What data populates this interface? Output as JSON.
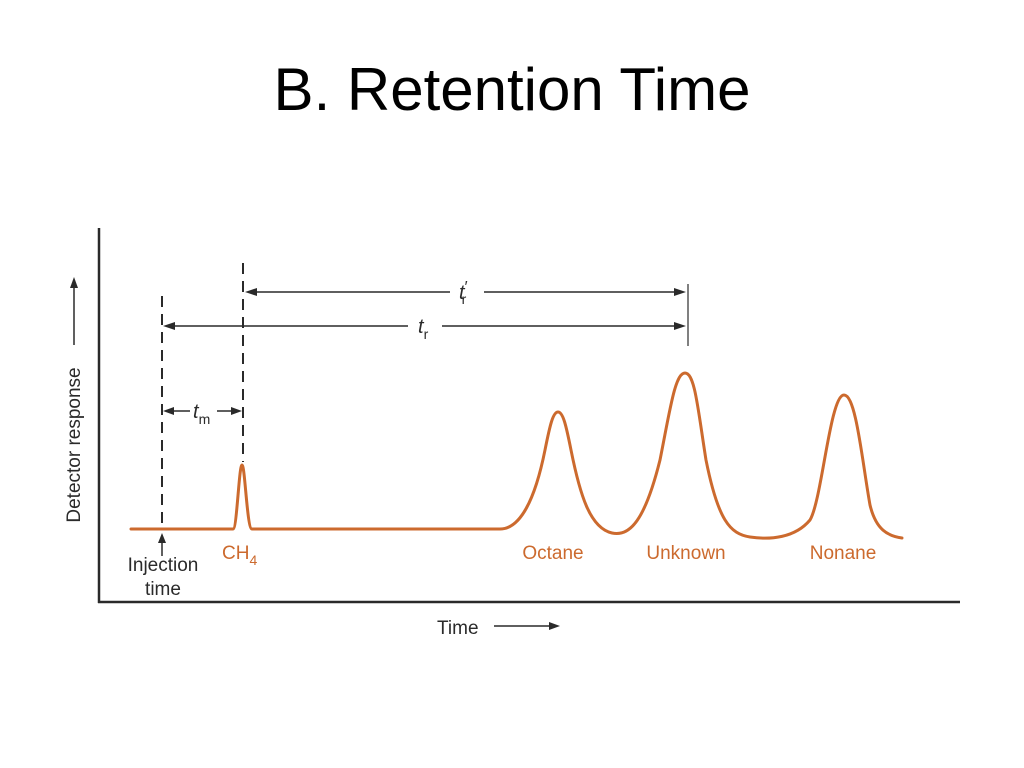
{
  "title": "B. Retention Time",
  "colors": {
    "trace": "#cc6a2e",
    "ink": "#2a2a2a",
    "peak_label": "#cc6a2e"
  },
  "axes": {
    "y_label": "Detector response",
    "x_label": "Time"
  },
  "markers": {
    "injection": {
      "line1": "Injection",
      "line2": "time"
    },
    "t_m": {
      "symbol": "t",
      "sub": "m"
    },
    "t_r": {
      "symbol": "t",
      "sub": "r"
    },
    "t_r_prime": {
      "symbol": "t",
      "sup": "′",
      "sub": "r"
    }
  },
  "peaks": [
    {
      "label_main": "CH",
      "label_sub": "4"
    },
    {
      "label_main": "Octane"
    },
    {
      "label_main": "Unknown"
    },
    {
      "label_main": "Nonane"
    }
  ]
}
